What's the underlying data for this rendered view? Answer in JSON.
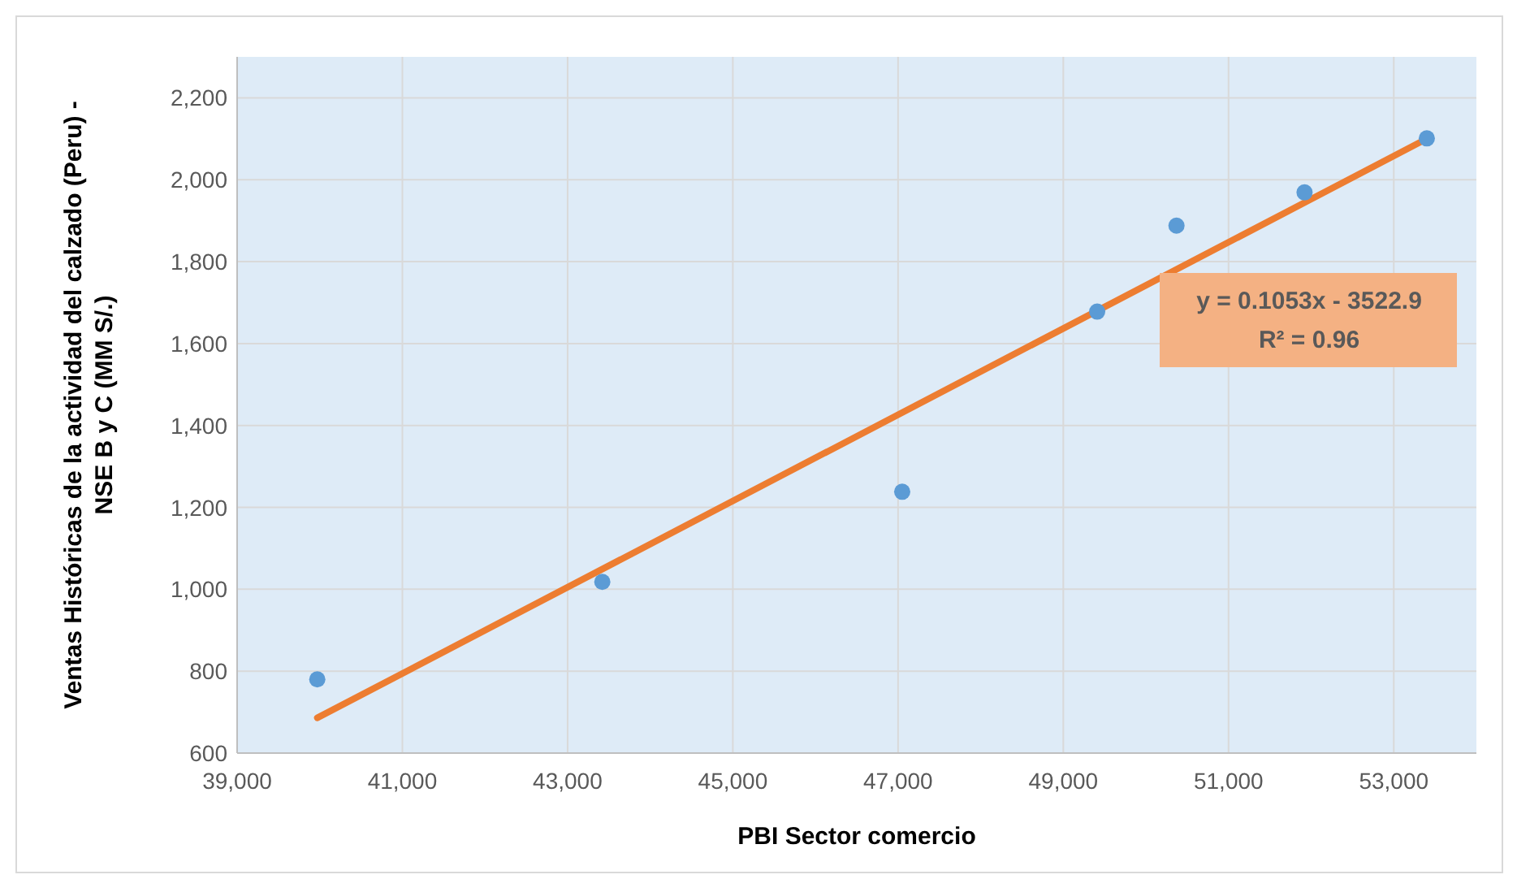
{
  "chart_data": {
    "type": "scatter",
    "xlabel": "PBI Sector comercio",
    "ylabel": "Ventas Históricas de la actividad del calzado (Peru) -\nNSE B y C (MM S/.)",
    "x": [
      39970,
      43420,
      47050,
      49410,
      50370,
      51920,
      53400
    ],
    "series": [
      {
        "color": "#5b9bd5",
        "marker": "circle",
        "values": [
          780,
          1018,
          1238,
          1678,
          1888,
          1969,
          2101
        ]
      },
      {
        "type": "line",
        "color": "#ed7d31",
        "x": [
          39970,
          53400
        ],
        "values": [
          686,
          2100
        ]
      }
    ],
    "annotations": [
      "y = 0.1053x - 3522.9\nR² = 0.96"
    ],
    "xlim": [
      39000,
      54000
    ],
    "xticks": [
      {
        "value": 39000,
        "label": "39,000"
      },
      {
        "value": 41000,
        "label": "41,000"
      },
      {
        "value": 43000,
        "label": "43,000"
      },
      {
        "value": 45000,
        "label": "45,000"
      },
      {
        "value": 47000,
        "label": "47,000"
      },
      {
        "value": 49000,
        "label": "49,000"
      },
      {
        "value": 51000,
        "label": "51,000"
      },
      {
        "value": 53000,
        "label": "53,000"
      }
    ],
    "ylim": [
      600,
      2300
    ],
    "yticks": [
      600,
      800,
      {
        "value": 1000,
        "label": "1,000"
      },
      {
        "value": 1200,
        "label": "1,200"
      },
      {
        "value": 1400,
        "label": "1,400"
      },
      {
        "value": 1600,
        "label": "1,600"
      },
      {
        "value": 1800,
        "label": "1,800"
      },
      {
        "value": 2000,
        "label": "2,000"
      },
      {
        "value": 2200,
        "label": "2,200"
      }
    ],
    "grid": true
  }
}
